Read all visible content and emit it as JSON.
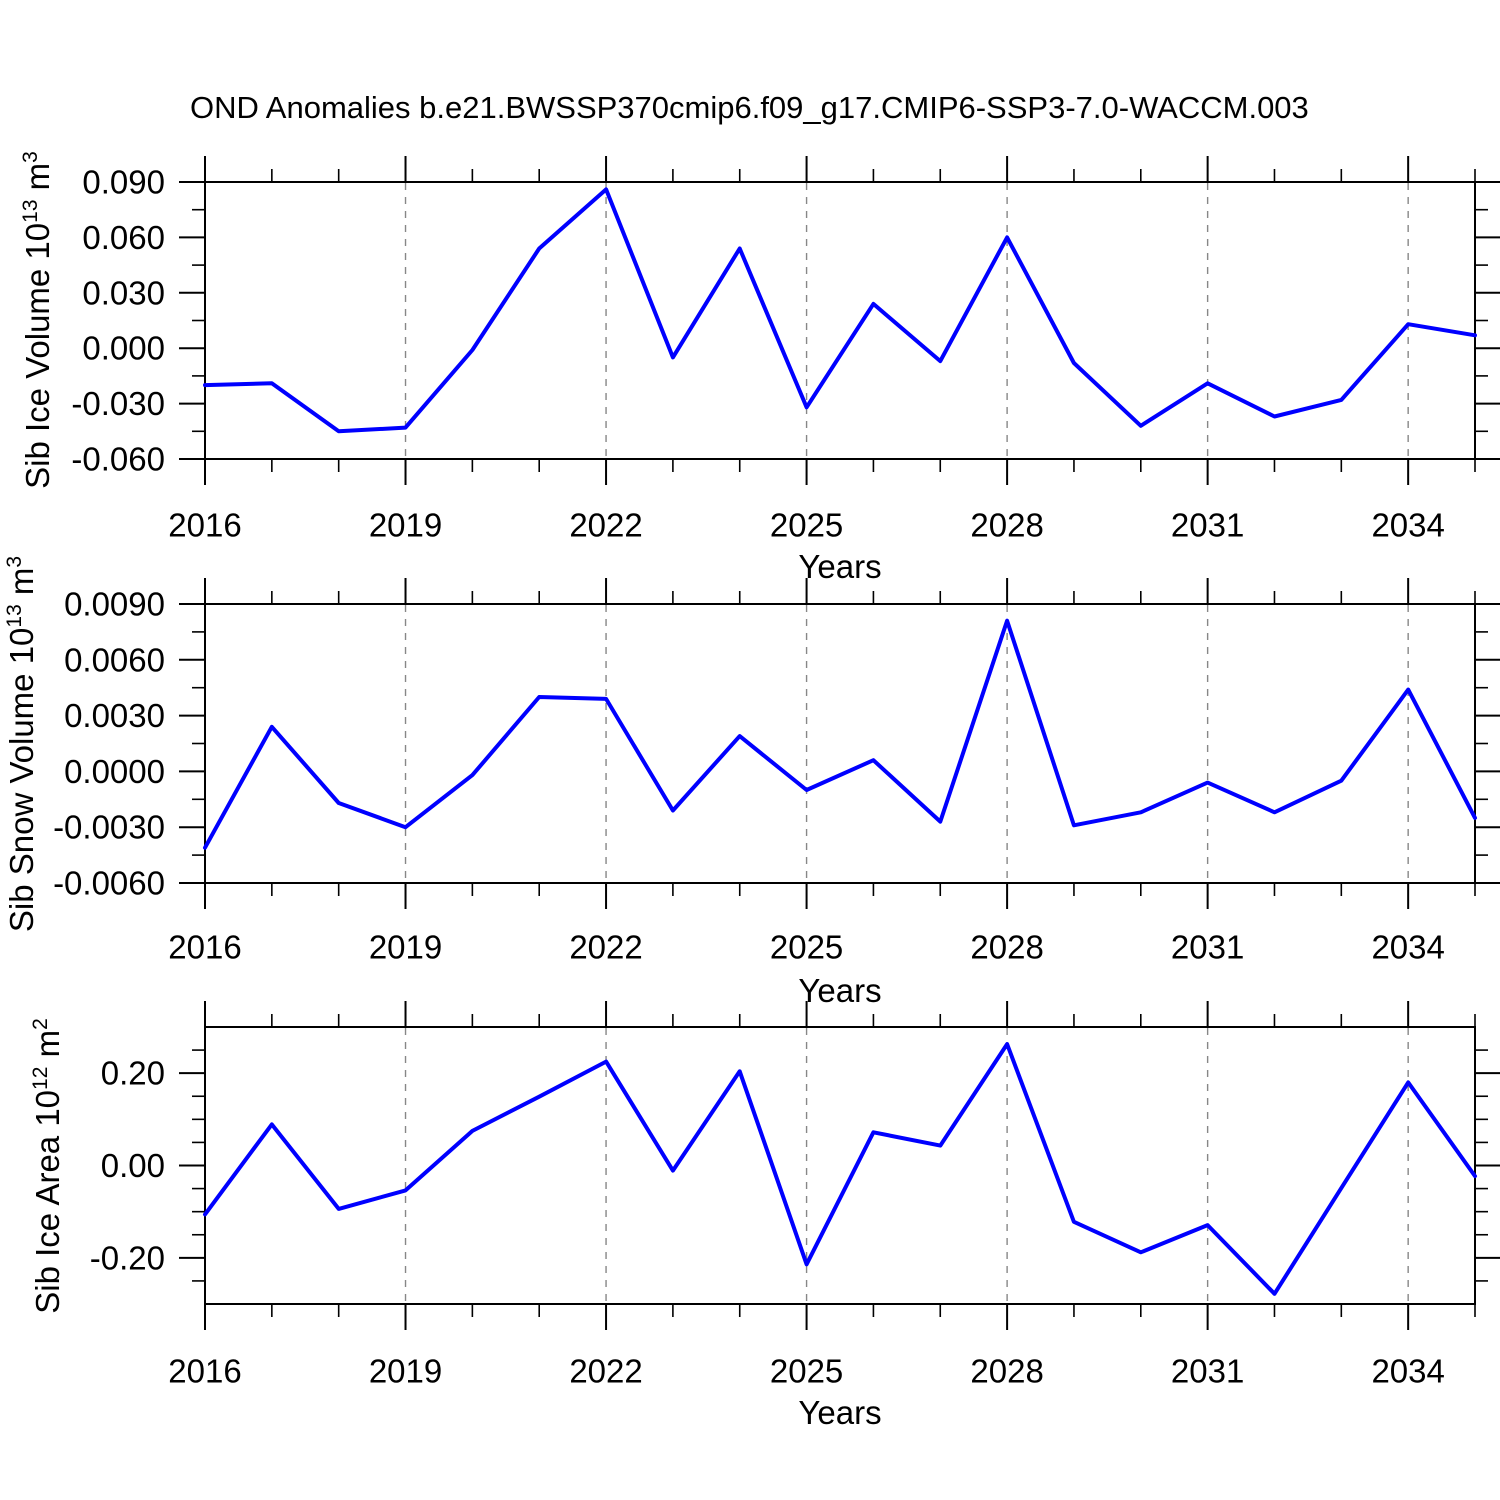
{
  "title": "OND Anomalies b.e21.BWSSP370cmip6.f09_g17.CMIP6-SSP3-7.0-WACCM.003",
  "line_color": "#0000ff",
  "grid_color": "#878787",
  "x_axis": {
    "label": "Years",
    "years": [
      2016,
      2017,
      2018,
      2019,
      2020,
      2021,
      2022,
      2023,
      2024,
      2025,
      2026,
      2027,
      2028,
      2029,
      2030,
      2031,
      2032,
      2033,
      2034,
      2035
    ],
    "major_tick_years": [
      2016,
      2019,
      2022,
      2025,
      2028,
      2031,
      2034
    ],
    "tick_labels": [
      "2016",
      "2019",
      "2022",
      "2025",
      "2028",
      "2031",
      "2034"
    ],
    "gridline_years": [
      2019,
      2022,
      2025,
      2028,
      2031,
      2034
    ]
  },
  "chart_data": [
    {
      "type": "line",
      "name": "sib-ice-volume",
      "ylabel_parts": {
        "base": "Sib Ice Volume 10",
        "exp": "13",
        "unit": " m",
        "unit_exp": "3"
      },
      "xlabel": "Years",
      "ylim": [
        -0.06,
        0.09
      ],
      "ytick_values": [
        0.09,
        0.06,
        0.03,
        0.0,
        -0.03,
        -0.06
      ],
      "ytick_labels": [
        "0.090",
        "0.060",
        "0.030",
        "0.000",
        "-0.030",
        "-0.060"
      ],
      "yminor_values": [
        0.075,
        0.045,
        0.015,
        -0.015,
        -0.045
      ],
      "x": [
        2016,
        2017,
        2018,
        2019,
        2020,
        2021,
        2022,
        2023,
        2024,
        2025,
        2026,
        2027,
        2028,
        2029,
        2030,
        2031,
        2032,
        2033,
        2034,
        2035
      ],
      "values": [
        -0.02,
        -0.019,
        -0.045,
        -0.043,
        -0.001,
        0.054,
        0.086,
        -0.005,
        0.054,
        -0.032,
        0.024,
        -0.007,
        0.06,
        -0.008,
        -0.042,
        -0.019,
        -0.037,
        -0.028,
        0.013,
        0.007
      ]
    },
    {
      "type": "line",
      "name": "sib-snow-volume",
      "ylabel_parts": {
        "base": "Sib Snow Volume 10",
        "exp": "13",
        "unit": " m",
        "unit_exp": "3"
      },
      "xlabel": "Years",
      "ylim": [
        -0.006,
        0.009
      ],
      "ytick_values": [
        0.009,
        0.006,
        0.003,
        0.0,
        -0.003,
        -0.006
      ],
      "ytick_labels": [
        "0.0090",
        "0.0060",
        "0.0030",
        "0.0000",
        "-0.0030",
        "-0.0060"
      ],
      "yminor_values": [
        0.0075,
        0.0045,
        0.0015,
        -0.0015,
        -0.0045
      ],
      "x": [
        2016,
        2017,
        2018,
        2019,
        2020,
        2021,
        2022,
        2023,
        2024,
        2025,
        2026,
        2027,
        2028,
        2029,
        2030,
        2031,
        2032,
        2033,
        2034,
        2035
      ],
      "values": [
        -0.0041,
        0.0024,
        -0.0017,
        -0.003,
        -0.0002,
        0.004,
        0.0039,
        -0.0021,
        0.0019,
        -0.001,
        0.0006,
        -0.0027,
        0.0081,
        -0.0029,
        -0.0022,
        -0.0006,
        -0.0022,
        -0.0005,
        0.0044,
        -0.0025
      ]
    },
    {
      "type": "line",
      "name": "sib-ice-area",
      "ylabel_parts": {
        "base": "Sib Ice Area 10",
        "exp": "12",
        "unit": " m",
        "unit_exp": "2"
      },
      "xlabel": "Years",
      "ylim": [
        -0.3,
        0.3
      ],
      "ytick_values": [
        0.2,
        0.0,
        -0.2
      ],
      "ytick_labels": [
        "0.20",
        "0.00",
        "-0.20"
      ],
      "yminor_values": [
        0.25,
        0.15,
        0.1,
        0.05,
        -0.05,
        -0.1,
        -0.15,
        -0.25
      ],
      "x": [
        2016,
        2017,
        2018,
        2019,
        2020,
        2021,
        2022,
        2023,
        2024,
        2025,
        2026,
        2027,
        2028,
        2029,
        2030,
        2031,
        2032,
        2033,
        2034,
        2035
      ],
      "values": [
        -0.106,
        0.089,
        -0.094,
        -0.054,
        0.075,
        0.149,
        0.225,
        -0.011,
        0.204,
        -0.214,
        0.072,
        0.043,
        0.263,
        -0.122,
        -0.188,
        -0.129,
        -0.278,
        -0.049,
        0.18,
        -0.023
      ]
    }
  ]
}
